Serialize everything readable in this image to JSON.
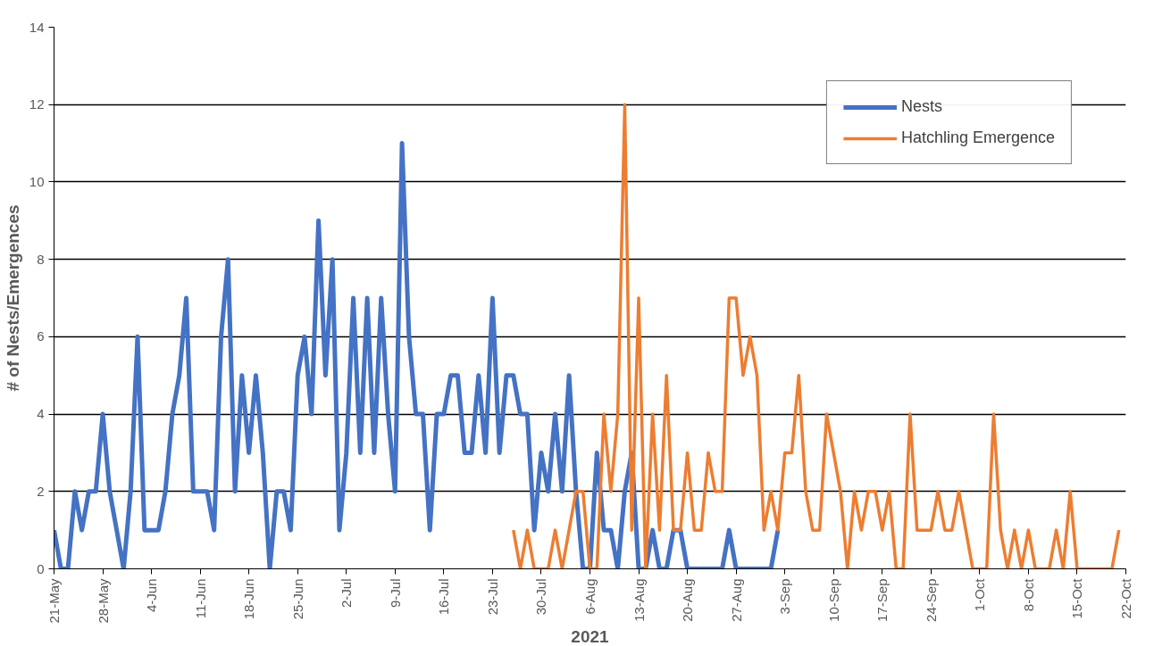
{
  "chart_data": {
    "type": "line",
    "xlabel": "2021",
    "ylabel": "# of Nests/Emergences",
    "ylim": [
      0,
      14
    ],
    "yticks": [
      0,
      2,
      4,
      6,
      8,
      10,
      12,
      14
    ],
    "grid": "y",
    "legend": "top right",
    "marker": "none",
    "line_style": "solid",
    "xlim": [
      "2021-05-21",
      "2021-10-22"
    ],
    "xticks": [
      {
        "value": "2021-05-21",
        "label": "21-May"
      },
      {
        "value": "2021-05-28",
        "label": "28-May"
      },
      {
        "value": "2021-06-04",
        "label": "4-Jun"
      },
      {
        "value": "2021-06-11",
        "label": "11-Jun"
      },
      {
        "value": "2021-06-18",
        "label": "18-Jun"
      },
      {
        "value": "2021-06-25",
        "label": "25-Jun"
      },
      {
        "value": "2021-07-02",
        "label": "2-Jul"
      },
      {
        "value": "2021-07-09",
        "label": "9-Jul"
      },
      {
        "value": "2021-07-16",
        "label": "16-Jul"
      },
      {
        "value": "2021-07-23",
        "label": "23-Jul"
      },
      {
        "value": "2021-07-30",
        "label": "30-Jul"
      },
      {
        "value": "2021-08-06",
        "label": "6-Aug"
      },
      {
        "value": "2021-08-13",
        "label": "13-Aug"
      },
      {
        "value": "2021-08-20",
        "label": "20-Aug"
      },
      {
        "value": "2021-08-27",
        "label": "27-Aug"
      },
      {
        "value": "2021-09-03",
        "label": "3-Sep"
      },
      {
        "value": "2021-09-10",
        "label": "10-Sep"
      },
      {
        "value": "2021-09-17",
        "label": "17-Sep"
      },
      {
        "value": "2021-09-24",
        "label": "24-Sep"
      },
      {
        "value": "2021-10-01",
        "label": "1-Oct"
      },
      {
        "value": "2021-10-08",
        "label": "8-Oct"
      },
      {
        "value": "2021-10-15",
        "label": "15-Oct"
      },
      {
        "value": "2021-10-22",
        "label": "22-Oct"
      }
    ],
    "series": [
      {
        "name": "Nests",
        "color": "#4472c4",
        "x": [
          "2021-05-21",
          "2021-05-22",
          "2021-05-23",
          "2021-05-24",
          "2021-05-25",
          "2021-05-26",
          "2021-05-27",
          "2021-05-28",
          "2021-05-29",
          "2021-05-30",
          "2021-05-31",
          "2021-06-01",
          "2021-06-02",
          "2021-06-03",
          "2021-06-04",
          "2021-06-05",
          "2021-06-06",
          "2021-06-07",
          "2021-06-08",
          "2021-06-09",
          "2021-06-10",
          "2021-06-11",
          "2021-06-12",
          "2021-06-13",
          "2021-06-14",
          "2021-06-15",
          "2021-06-16",
          "2021-06-17",
          "2021-06-18",
          "2021-06-19",
          "2021-06-20",
          "2021-06-21",
          "2021-06-22",
          "2021-06-23",
          "2021-06-24",
          "2021-06-25",
          "2021-06-26",
          "2021-06-27",
          "2021-06-28",
          "2021-06-29",
          "2021-06-30",
          "2021-07-01",
          "2021-07-02",
          "2021-07-03",
          "2021-07-04",
          "2021-07-05",
          "2021-07-06",
          "2021-07-07",
          "2021-07-08",
          "2021-07-09",
          "2021-07-10",
          "2021-07-11",
          "2021-07-12",
          "2021-07-13",
          "2021-07-14",
          "2021-07-15",
          "2021-07-16",
          "2021-07-17",
          "2021-07-18",
          "2021-07-19",
          "2021-07-20",
          "2021-07-21",
          "2021-07-22",
          "2021-07-23",
          "2021-07-24",
          "2021-07-25",
          "2021-07-26",
          "2021-07-27",
          "2021-07-28",
          "2021-07-29",
          "2021-07-30",
          "2021-07-31",
          "2021-08-01",
          "2021-08-02",
          "2021-08-03",
          "2021-08-04",
          "2021-08-05",
          "2021-08-06",
          "2021-08-07",
          "2021-08-08",
          "2021-08-09",
          "2021-08-10",
          "2021-08-11",
          "2021-08-12",
          "2021-08-13",
          "2021-08-14",
          "2021-08-15",
          "2021-08-16",
          "2021-08-17",
          "2021-08-18",
          "2021-08-19",
          "2021-08-20",
          "2021-08-21",
          "2021-08-22",
          "2021-08-23",
          "2021-08-24",
          "2021-08-25",
          "2021-08-26",
          "2021-08-27",
          "2021-08-28",
          "2021-08-29",
          "2021-08-30",
          "2021-08-31",
          "2021-09-01",
          "2021-09-02"
        ],
        "values": [
          1,
          0,
          0,
          2,
          1,
          2,
          2,
          4,
          2,
          1,
          0,
          2,
          6,
          1,
          1,
          1,
          2,
          4,
          5,
          7,
          2,
          2,
          2,
          1,
          6,
          8,
          2,
          5,
          3,
          5,
          3,
          0,
          2,
          2,
          1,
          5,
          6,
          4,
          9,
          5,
          8,
          1,
          3,
          7,
          3,
          7,
          3,
          7,
          4,
          2,
          11,
          6,
          4,
          4,
          1,
          4,
          4,
          5,
          5,
          3,
          3,
          5,
          3,
          7,
          3,
          5,
          5,
          4,
          4,
          1,
          3,
          2,
          4,
          2,
          5,
          2,
          0,
          0,
          3,
          1,
          1,
          0,
          2,
          3,
          0,
          0,
          1,
          0,
          0,
          1,
          1,
          0,
          0,
          0,
          0,
          0,
          0,
          1,
          0,
          0,
          0,
          0,
          0,
          0,
          1
        ]
      },
      {
        "name": "Hatchling Emergence",
        "color": "#ed7d31",
        "x": [
          "2021-07-26",
          "2021-07-27",
          "2021-07-28",
          "2021-07-29",
          "2021-07-30",
          "2021-07-31",
          "2021-08-01",
          "2021-08-02",
          "2021-08-03",
          "2021-08-04",
          "2021-08-05",
          "2021-08-06",
          "2021-08-07",
          "2021-08-08",
          "2021-08-09",
          "2021-08-10",
          "2021-08-11",
          "2021-08-12",
          "2021-08-13",
          "2021-08-14",
          "2021-08-15",
          "2021-08-16",
          "2021-08-17",
          "2021-08-18",
          "2021-08-19",
          "2021-08-20",
          "2021-08-21",
          "2021-08-22",
          "2021-08-23",
          "2021-08-24",
          "2021-08-25",
          "2021-08-26",
          "2021-08-27",
          "2021-08-28",
          "2021-08-29",
          "2021-08-30",
          "2021-08-31",
          "2021-09-01",
          "2021-09-02",
          "2021-09-03",
          "2021-09-04",
          "2021-09-05",
          "2021-09-06",
          "2021-09-07",
          "2021-09-08",
          "2021-09-09",
          "2021-09-10",
          "2021-09-11",
          "2021-09-12",
          "2021-09-13",
          "2021-09-14",
          "2021-09-15",
          "2021-09-16",
          "2021-09-17",
          "2021-09-18",
          "2021-09-19",
          "2021-09-20",
          "2021-09-21",
          "2021-09-22",
          "2021-09-23",
          "2021-09-24",
          "2021-09-25",
          "2021-09-26",
          "2021-09-27",
          "2021-09-28",
          "2021-09-29",
          "2021-09-30",
          "2021-10-01",
          "2021-10-02",
          "2021-10-03",
          "2021-10-04",
          "2021-10-05",
          "2021-10-06",
          "2021-10-07",
          "2021-10-08",
          "2021-10-09",
          "2021-10-10",
          "2021-10-11",
          "2021-10-12",
          "2021-10-13",
          "2021-10-14",
          "2021-10-15",
          "2021-10-16",
          "2021-10-17",
          "2021-10-18",
          "2021-10-19",
          "2021-10-20",
          "2021-10-21"
        ],
        "values": [
          1,
          0,
          1,
          0,
          0,
          0,
          1,
          0,
          1,
          2,
          2,
          0,
          0,
          4,
          2,
          4,
          12,
          1,
          7,
          0,
          4,
          1,
          5,
          1,
          1,
          3,
          1,
          1,
          3,
          2,
          2,
          7,
          7,
          5,
          6,
          5,
          1,
          2,
          1,
          3,
          3,
          5,
          2,
          1,
          1,
          4,
          3,
          2,
          0,
          2,
          1,
          2,
          2,
          1,
          2,
          0,
          0,
          4,
          1,
          1,
          1,
          2,
          1,
          1,
          2,
          1,
          0,
          0,
          0,
          4,
          1,
          0,
          1,
          0,
          1,
          0,
          0,
          0,
          1,
          0,
          2,
          0,
          0,
          0,
          0,
          0,
          0,
          1
        ]
      }
    ]
  }
}
